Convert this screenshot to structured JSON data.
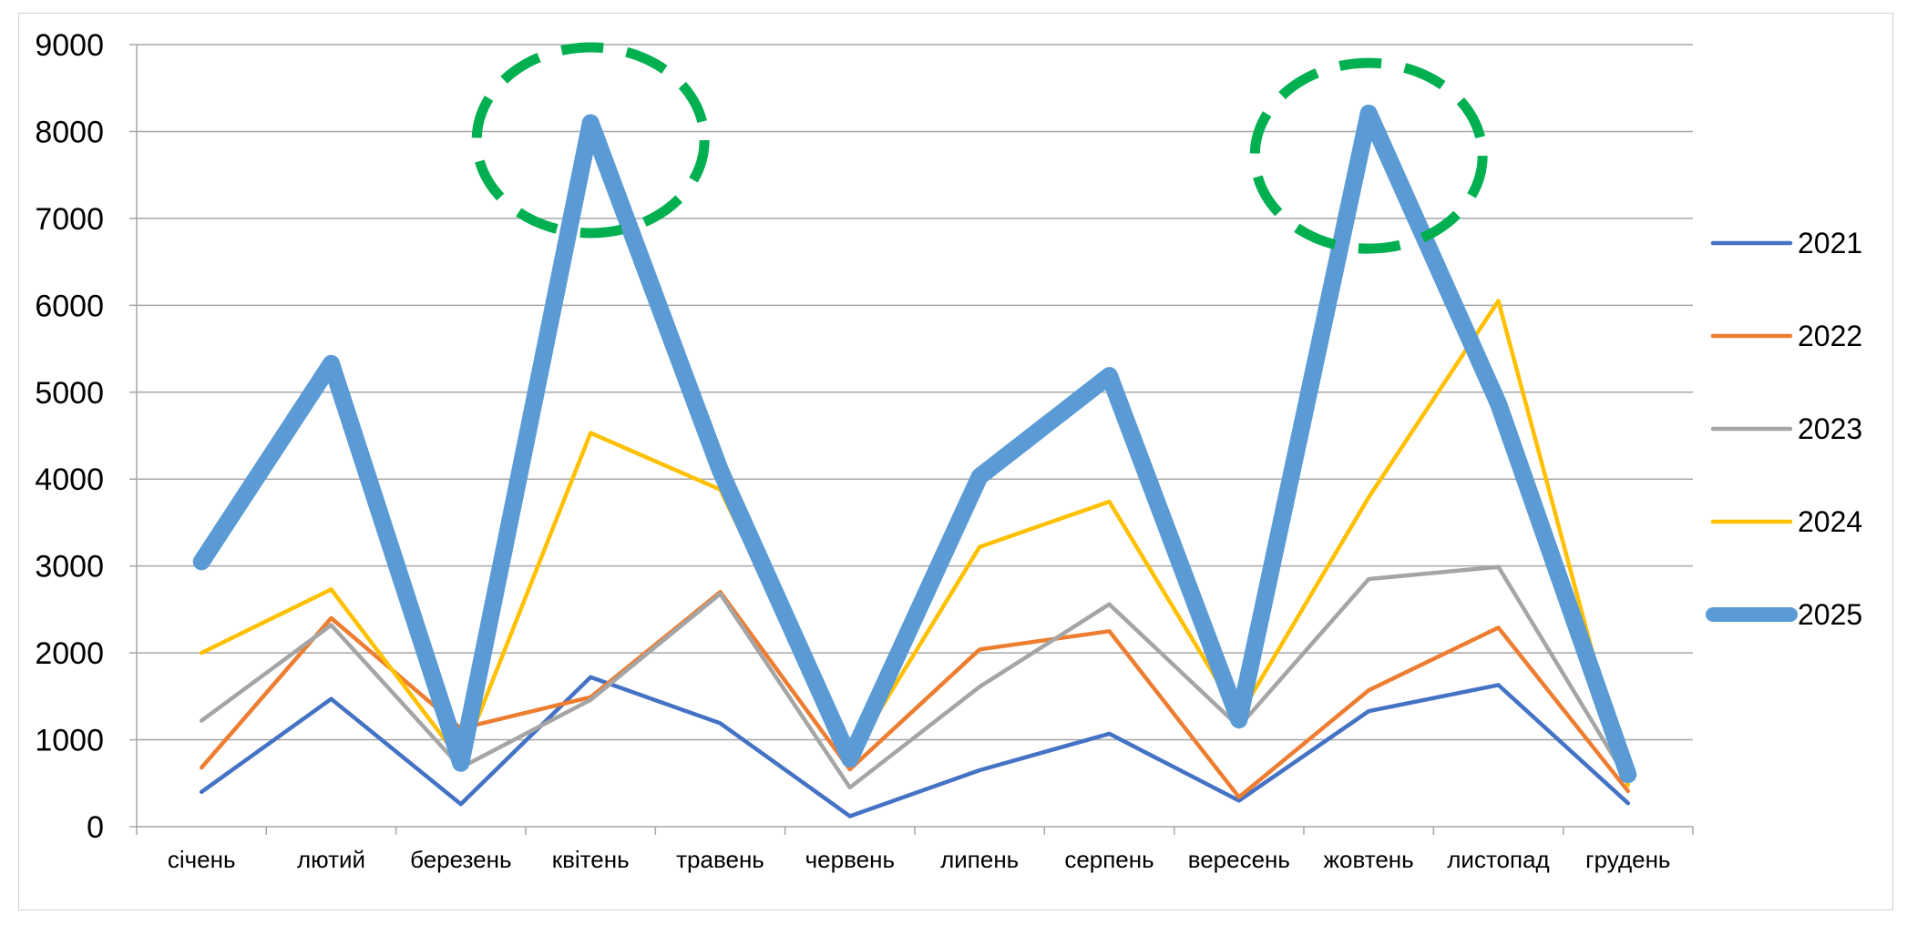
{
  "chart_data": {
    "type": "line",
    "title": "",
    "xlabel": "",
    "ylabel": "",
    "categories": [
      "січень",
      "лютий",
      "березень",
      "квітень",
      "травень",
      "червень",
      "липень",
      "серпень",
      "вересень",
      "жовтень",
      "листопад",
      "грудень"
    ],
    "ylim": [
      0,
      9000
    ],
    "yticks": [
      "0",
      "1000",
      "2000",
      "3000",
      "4000",
      "5000",
      "6000",
      "7000",
      "8000",
      "9000"
    ],
    "grid": true,
    "legend_position": "right",
    "series": [
      {
        "name": "2021",
        "color": "#4472C4",
        "width": "thin",
        "values": [
          400,
          1470,
          260,
          1720,
          1190,
          120,
          650,
          1070,
          300,
          1330,
          1630,
          270
        ]
      },
      {
        "name": "2022",
        "color": "#ED7D31",
        "width": "thin",
        "values": [
          680,
          2400,
          1130,
          1490,
          2700,
          660,
          2040,
          2250,
          340,
          1570,
          2290,
          410
        ]
      },
      {
        "name": "2023",
        "color": "#A5A5A5",
        "width": "thin",
        "values": [
          1220,
          2320,
          680,
          1460,
          2680,
          450,
          1610,
          2560,
          1150,
          2850,
          2990,
          530
        ]
      },
      {
        "name": "2024",
        "color": "#FFC000",
        "width": "thin",
        "values": [
          2000,
          2730,
          760,
          4530,
          3880,
          780,
          3220,
          3740,
          1270,
          3790,
          6050,
          480
        ]
      },
      {
        "name": "2025",
        "color": "#5B9BD5",
        "width": "thick",
        "values": [
          3050,
          5330,
          730,
          8100,
          4100,
          780,
          4030,
          5190,
          1230,
          8210,
          4870,
          600
        ]
      }
    ],
    "annotations": [
      {
        "shape": "dashed-ellipse",
        "color": "#00B050",
        "category": "квітень",
        "value": 7900
      },
      {
        "shape": "dashed-ellipse",
        "color": "#00B050",
        "category": "жовтень",
        "value": 7720
      }
    ]
  }
}
